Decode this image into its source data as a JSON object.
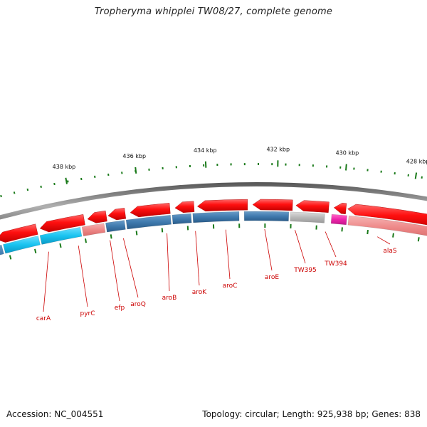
{
  "title": "Tropheryma whipplei TW08/27, complete genome",
  "footer": {
    "accession": "Accession: NC_004551",
    "summary": "Topology: circular; Length: 925,938 bp; Genes: 838"
  },
  "colors": {
    "forward_gene": "#e60000",
    "reverse_gene": "#3f7aae",
    "rna_gene": "#19c3f0",
    "pseudo_gene": "#ee8888",
    "misc_gene": "#b8b8b8",
    "special_gene": "#ee22aa",
    "backbone": "#8a8a8a",
    "ticks": "#1a7a1a",
    "label": "#cc0000"
  },
  "scale": {
    "unit": "kbp",
    "labels": [
      "438 kbp",
      "436 kbp",
      "434 kbp",
      "432 kbp",
      "430 kbp",
      "428 kbp"
    ]
  },
  "gene_labels": [
    "carA",
    "pyrC",
    "efp",
    "aroQ",
    "aroB",
    "aroK",
    "aroC",
    "aroE",
    "TW395",
    "TW394",
    "alaS"
  ]
}
